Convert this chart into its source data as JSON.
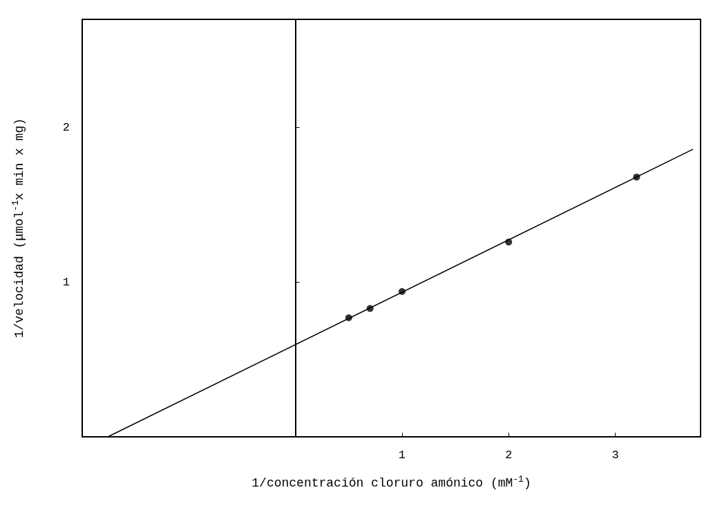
{
  "chart_data": {
    "type": "scatter",
    "xlabel": "1/concentración cloruro amónico (mM$^{-1}$)",
    "ylabel": "1/velocidad (μmol$^{-1}$x min x mg)",
    "xlim": [
      -2,
      3.8
    ],
    "ylim": [
      0,
      2.7
    ],
    "xticks": [
      1,
      2,
      3
    ],
    "yticks": [
      1,
      2
    ],
    "grid": false,
    "marker": "circle",
    "series": [
      {
        "color": "#000000",
        "x": [
          0.5,
          0.7,
          1.0,
          2.0,
          3.2
        ],
        "values": [
          0.77,
          0.83,
          0.94,
          1.26,
          1.68
        ]
      },
      {
        "type": "line",
        "color": "#000000",
        "x": [
          -1.76,
          3.73
        ],
        "values": [
          0,
          1.86
        ],
        "marker": "none"
      }
    ]
  }
}
